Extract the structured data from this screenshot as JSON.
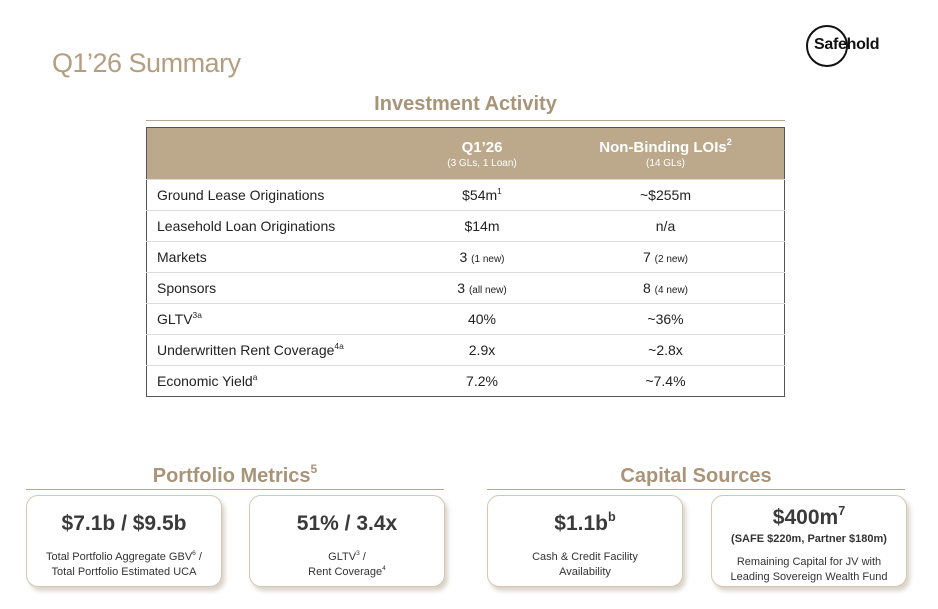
{
  "page": {
    "title": "Q1’26 Summary",
    "logo_text": "Safehold"
  },
  "investment_activity": {
    "heading": "Investment Activity",
    "col1_title": "Q1’26",
    "col1_sub": "(3 GLs, 1 Loan)",
    "col2_title": "Non-Binding LOIs",
    "col2_sup": "2",
    "col2_sub": "(14 GLs)",
    "rows": [
      {
        "label": "Ground Lease Originations",
        "label_sup": "",
        "v1": "$54m",
        "v1_sup": "1",
        "v1_small": "",
        "v2": "~$255m",
        "v2_small": ""
      },
      {
        "label": "Leasehold Loan Originations",
        "label_sup": "",
        "v1": "$14m",
        "v1_sup": "",
        "v1_small": "",
        "v2": "n/a",
        "v2_small": ""
      },
      {
        "label": "Markets",
        "label_sup": "",
        "v1": "3",
        "v1_sup": "",
        "v1_small": "(1 new)",
        "v2": "7",
        "v2_small": "(2 new)"
      },
      {
        "label": "Sponsors",
        "label_sup": "",
        "v1": "3",
        "v1_sup": "",
        "v1_small": "(all new)",
        "v2": "8",
        "v2_small": "(4 new)"
      },
      {
        "label": "GLTV",
        "label_sup": "3a",
        "v1": "40%",
        "v1_sup": "",
        "v1_small": "",
        "v2": "~36%",
        "v2_small": ""
      },
      {
        "label": "Underwritten Rent Coverage",
        "label_sup": "4a",
        "v1": "2.9x",
        "v1_sup": "",
        "v1_small": "",
        "v2": "~2.8x",
        "v2_small": ""
      },
      {
        "label": "Economic Yield",
        "label_sup": "a",
        "v1": "7.2%",
        "v1_sup": "",
        "v1_small": "",
        "v2": "~7.4%",
        "v2_small": ""
      }
    ]
  },
  "portfolio_metrics": {
    "heading": "Portfolio Metrics",
    "heading_sup": "5",
    "cards": [
      {
        "big": "$7.1b / $9.5b",
        "line1": "Total Portfolio Aggregate GBV",
        "line1_sup": "6",
        "line1_tail": " /",
        "line2": "Total Portfolio Estimated UCA",
        "line2_sup": ""
      },
      {
        "big": "51% / 3.4x",
        "line1": "GLTV",
        "line1_sup": "3",
        "line1_tail": " /",
        "line2": "Rent Coverage",
        "line2_sup": "4"
      }
    ]
  },
  "capital_sources": {
    "heading": "Capital Sources",
    "cards": [
      {
        "big": "$1.1b",
        "big_sup": "b",
        "sub": "",
        "line1": "Cash & Credit Facility",
        "line2": "Availability"
      },
      {
        "big": "$400m",
        "big_sup": "7",
        "sub": "(SAFE $220m, Partner $180m)",
        "line1": "Remaining Capital for JV with",
        "line2": "Leading Sovereign Wealth Fund"
      }
    ]
  }
}
